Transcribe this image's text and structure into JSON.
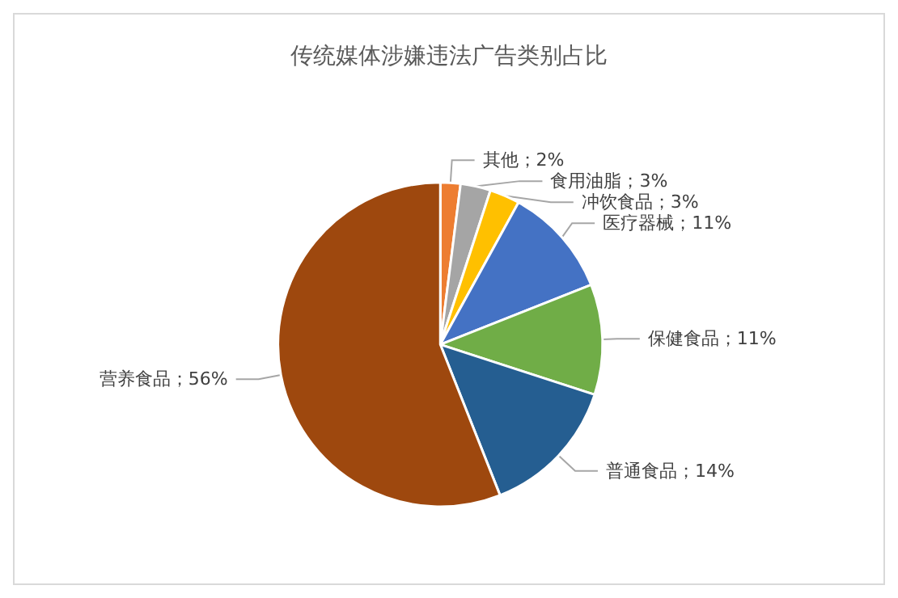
{
  "chart_data": {
    "type": "pie",
    "title": "传统媒体涉嫌违法广告类别占比",
    "categories": [
      "其他",
      "食用油脂",
      "冲饮食品",
      "医疗器械",
      "保健食品",
      "普通食品",
      "营养食品"
    ],
    "values": [
      2,
      3,
      3,
      11,
      11,
      14,
      56
    ],
    "colors": [
      "#ed7d31",
      "#a5a5a5",
      "#ffc000",
      "#4472c4",
      "#70ad47",
      "#255e91",
      "#9e480e"
    ],
    "value_labels": [
      "；2%",
      "；3%",
      "；3%",
      "；11%",
      "；11%",
      "；14%",
      "；56%"
    ],
    "legend": false
  }
}
